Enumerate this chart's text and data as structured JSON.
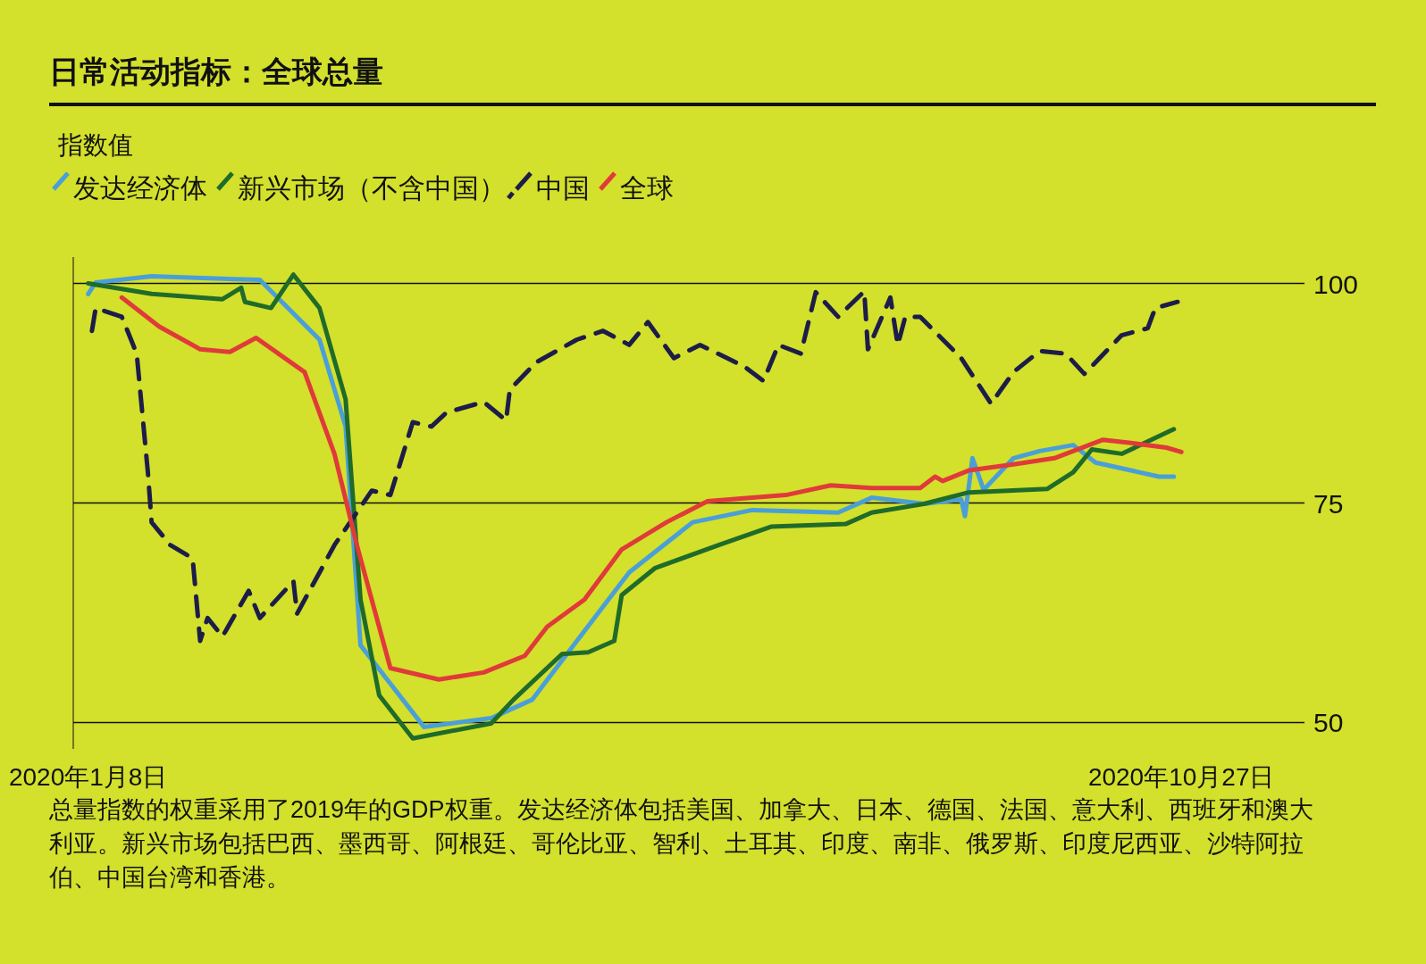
{
  "chart_data": {
    "type": "line",
    "title": "日常活动指标：全球总量",
    "ylabel": "指数值",
    "legend": "top left",
    "grid": "y",
    "xlim": [
      "2020-01-04",
      "2020-11-29"
    ],
    "ylim": [
      47,
      103
    ],
    "xticks": [
      {
        "value": "2020-01-08",
        "label": "2020年1月8日"
      },
      {
        "value": "2020-10-27",
        "label": "2020年10月27日"
      }
    ],
    "yticks": [
      50,
      75,
      100
    ],
    "annotations": [
      "总量指数的权重采用了2019年的GDP权重。发达经济体包括美国、加拿大、日本、德国、法国、意大利、西班牙和澳大利亚。新兴市场包括巴西、墨西哥、阿根廷、哥伦比亚、智利、土耳其、印度、南非、俄罗斯、印度尼西亚、沙特阿拉伯、中国台湾和香港。"
    ],
    "series": [
      {
        "name": "发达经济体",
        "color": "#4a9fd8",
        "x": [
          "2020-01-08",
          "2020-01-10",
          "2020-01-25",
          "2020-02-23",
          "2020-03-10",
          "2020-03-17",
          "2020-03-21",
          "2020-04-07",
          "2020-04-25",
          "2020-05-06",
          "2020-05-18",
          "2020-06-01",
          "2020-06-18",
          "2020-07-04",
          "2020-07-27",
          "2020-08-05",
          "2020-08-19",
          "2020-08-29",
          "2020-08-30",
          "2020-09-01",
          "2020-09-04",
          "2020-09-12",
          "2020-09-19",
          "2020-09-28",
          "2020-10-04",
          "2020-10-21",
          "2020-10-25"
        ],
        "values": [
          98.8,
          100.1,
          100.8,
          100.4,
          93.6,
          83.7,
          58.8,
          49.5,
          50.5,
          52.6,
          59.3,
          67.1,
          72.8,
          74.2,
          73.9,
          75.6,
          74.9,
          75.4,
          73.5,
          80.1,
          76.5,
          80.1,
          80.9,
          81.6,
          79.6,
          78.0,
          78.0
        ]
      },
      {
        "name": "新兴市场（不含中国）",
        "color": "#1f6b2a",
        "x": [
          "2020-01-08",
          "2020-01-25",
          "2020-02-13",
          "2020-02-18",
          "2020-02-19",
          "2020-02-26",
          "2020-03-03",
          "2020-03-10",
          "2020-03-17",
          "2020-03-21",
          "2020-03-26",
          "2020-04-04",
          "2020-04-25",
          "2020-05-01",
          "2020-05-14",
          "2020-05-21",
          "2020-05-28",
          "2020-05-30",
          "2020-06-08",
          "2020-06-25",
          "2020-07-09",
          "2020-07-29",
          "2020-08-05",
          "2020-08-19",
          "2020-08-31",
          "2020-09-21",
          "2020-09-28",
          "2020-10-03",
          "2020-10-11",
          "2020-10-16",
          "2020-10-25"
        ],
        "values": [
          100,
          98.8,
          98.2,
          99.5,
          97.9,
          97.2,
          101,
          97.2,
          86.8,
          64,
          53.1,
          48.2,
          49.9,
          52.6,
          57.8,
          58,
          59.3,
          64.5,
          67.6,
          70.2,
          72.3,
          72.6,
          73.9,
          74.9,
          76.2,
          76.6,
          78.5,
          81.1,
          80.6,
          81.6,
          83.4
        ]
      },
      {
        "name": "中国",
        "color": "#1d1d4a",
        "line_style": "dashed",
        "x": [
          "2020-01-09",
          "2020-01-10",
          "2020-01-17",
          "2020-01-21",
          "2020-01-24",
          "2020-01-25",
          "2020-01-30",
          "2020-02-05",
          "2020-02-07",
          "2020-02-09",
          "2020-02-13",
          "2020-02-20",
          "2020-02-23",
          "2020-03-03",
          "2020-03-04",
          "2020-03-14",
          "2020-03-24",
          "2020-03-29",
          "2020-04-04",
          "2020-04-09",
          "2020-04-13",
          "2020-04-23",
          "2020-04-29",
          "2020-04-30",
          "2020-05-07",
          "2020-05-18",
          "2020-05-25",
          "2020-06-01",
          "2020-06-06",
          "2020-06-13",
          "2020-06-20",
          "2020-07-02",
          "2020-07-07",
          "2020-07-11",
          "2020-07-17",
          "2020-07-21",
          "2020-07-27",
          "2020-08-03",
          "2020-08-04",
          "2020-08-10",
          "2020-08-12",
          "2020-08-14",
          "2020-08-18",
          "2020-08-29",
          "2020-09-06",
          "2020-09-12",
          "2020-09-19",
          "2020-09-26",
          "2020-10-01",
          "2020-10-11",
          "2020-10-18",
          "2020-10-20",
          "2020-10-26"
        ],
        "values": [
          94.6,
          97.2,
          96.2,
          92,
          78.5,
          72.8,
          70.2,
          68.7,
          59.3,
          61.9,
          59.8,
          65,
          61.9,
          66.1,
          62.4,
          70.2,
          76.4,
          75.9,
          84.2,
          83.7,
          85.3,
          86.5,
          84.4,
          87.9,
          91,
          93.6,
          94.6,
          93,
          95.6,
          91.5,
          93,
          90.5,
          88.9,
          93,
          92,
          99,
          96.2,
          99.1,
          92.5,
          98.4,
          93,
          96.2,
          96.2,
          91.5,
          86.3,
          89.9,
          92.3,
          92,
          89.7,
          94.1,
          94.9,
          97.2,
          97.9
        ]
      },
      {
        "name": "全球",
        "color": "#e03a3a",
        "x": [
          "2020-01-17",
          "2020-01-27",
          "2020-02-07",
          "2020-02-15",
          "2020-02-22",
          "2020-03-06",
          "2020-03-14",
          "2020-03-20",
          "2020-03-29",
          "2020-04-11",
          "2020-04-23",
          "2020-05-04",
          "2020-05-10",
          "2020-05-20",
          "2020-05-30",
          "2020-06-11",
          "2020-06-22",
          "2020-07-13",
          "2020-07-25",
          "2020-08-05",
          "2020-08-18",
          "2020-08-22",
          "2020-08-24",
          "2020-08-31",
          "2020-09-12",
          "2020-09-23",
          "2020-10-06",
          "2020-10-14",
          "2020-10-23",
          "2020-10-27"
        ],
        "values": [
          98.4,
          95.1,
          92.5,
          92.2,
          93.8,
          89.9,
          80.6,
          70.2,
          56.2,
          54.9,
          55.7,
          57.6,
          60.9,
          64,
          69.7,
          72.8,
          75.2,
          75.9,
          77,
          76.7,
          76.7,
          78,
          77.5,
          78.7,
          79.4,
          80.1,
          82.2,
          81.8,
          81.3,
          80.8
        ]
      }
    ]
  }
}
